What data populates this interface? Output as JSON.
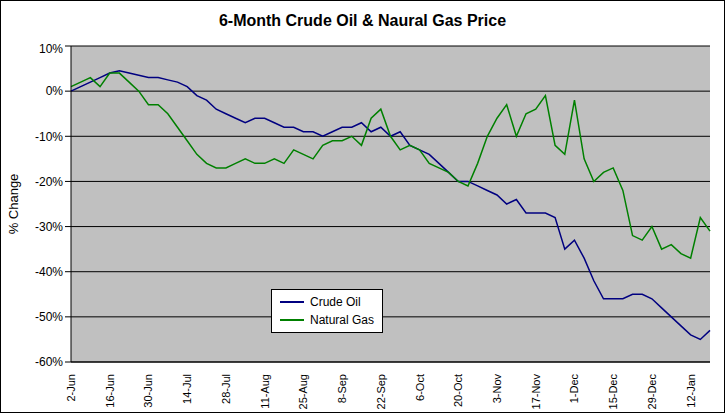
{
  "chart_data": {
    "type": "line",
    "title": "6-Month Crude Oil & Naural Gas Price",
    "y_label": "% Change",
    "categories": [
      "2-Jun",
      null,
      null,
      null,
      "16-Jun",
      null,
      null,
      null,
      "30-Jun",
      null,
      null,
      null,
      "14-Jul",
      null,
      null,
      null,
      "28-Jul",
      null,
      null,
      null,
      "11-Aug",
      null,
      null,
      null,
      "25-Aug",
      null,
      null,
      null,
      "8-Sep",
      null,
      null,
      null,
      "22-Sep",
      null,
      null,
      null,
      "6-Oct",
      null,
      null,
      null,
      "20-Oct",
      null,
      null,
      null,
      "3-Nov",
      null,
      null,
      null,
      "17-Nov",
      null,
      null,
      null,
      "1-Dec",
      null,
      null,
      null,
      "15-Dec",
      null,
      null,
      null,
      "29-Dec",
      null,
      null,
      null,
      "12-Jan",
      null,
      null
    ],
    "series": [
      {
        "name": "Crude Oil",
        "color": "#000080",
        "values": [
          0,
          1,
          2,
          3,
          4,
          4.5,
          4,
          3.5,
          3,
          3,
          2.5,
          2,
          1,
          -1,
          -2,
          -4,
          -5,
          -6,
          -7,
          -6,
          -6,
          -7,
          -8,
          -8,
          -9,
          -9,
          -10,
          -9,
          -8,
          -8,
          -7,
          -9,
          -8,
          -10,
          -9,
          -12,
          -13,
          -14,
          -16,
          -18,
          -20,
          -20,
          -21,
          -22,
          -23,
          -25,
          -24,
          -27,
          -27,
          -27,
          -28,
          -35,
          -33,
          -37,
          -42,
          -46,
          -46,
          -46,
          -45,
          -45,
          -46,
          -48,
          -50,
          -52,
          -54,
          -55,
          -53
        ]
      },
      {
        "name": "Natural Gas",
        "color": "#008000",
        "values": [
          1,
          2,
          3,
          1,
          4,
          4,
          2,
          0,
          -3,
          -3,
          -5,
          -8,
          -11,
          -14,
          -16,
          -17,
          -17,
          -16,
          -15,
          -16,
          -16,
          -15,
          -16,
          -13,
          -14,
          -15,
          -12,
          -11,
          -11,
          -10,
          -12,
          -6,
          -4,
          -10,
          -13,
          -12,
          -13,
          -16,
          -17,
          -18,
          -20,
          -21,
          -16,
          -10,
          -6,
          -3,
          -10,
          -5,
          -4,
          -1,
          -12,
          -14,
          -2,
          -15,
          -20,
          -18,
          -17,
          -22,
          -32,
          -33,
          -30,
          -35,
          -34,
          -36,
          -37,
          -28,
          -31
        ]
      }
    ],
    "ylim": [
      -60,
      10
    ],
    "yticks": [
      {
        "value": -60,
        "label": "-60%"
      },
      {
        "value": -50,
        "label": "-50%"
      },
      {
        "value": -40,
        "label": "-40%"
      },
      {
        "value": -30,
        "label": "-30%"
      },
      {
        "value": -20,
        "label": "-20%"
      },
      {
        "value": -10,
        "label": "-10%"
      },
      {
        "value": 0,
        "label": "0%"
      },
      {
        "value": 10,
        "label": "10%"
      }
    ],
    "grid": true,
    "legend": "lower left"
  }
}
